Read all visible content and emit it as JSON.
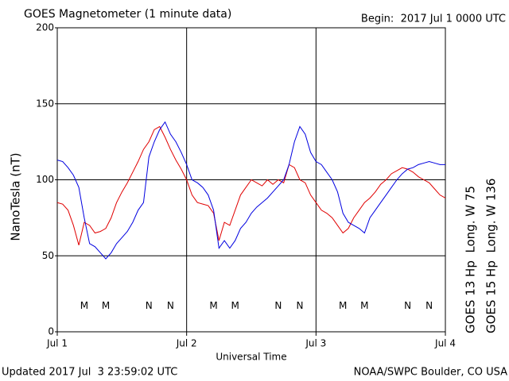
{
  "chart_data": {
    "type": "line",
    "title": "GOES Magnetometer (1 minute data)",
    "subtitle": "Begin:  2017 Jul 1 0000 UTC",
    "ylabel": "NanoTesla (nT)",
    "xlabel": "Universal Time",
    "footer_left": "Updated 2017 Jul  3 23:59:02 UTC",
    "footer_right": "NOAA/SWPC Boulder, CO USA",
    "xlim": [
      0,
      72
    ],
    "ylim": [
      0,
      200
    ],
    "yticks": [
      0,
      50,
      100,
      150,
      200
    ],
    "xticks": [
      {
        "value": 0,
        "label": "Jul 1"
      },
      {
        "value": 24,
        "label": "Jul 2"
      },
      {
        "value": 48,
        "label": "Jul 3"
      },
      {
        "value": 72,
        "label": "Jul 4"
      }
    ],
    "grid": true,
    "x": [
      0,
      1,
      2,
      3,
      4,
      5,
      6,
      7,
      8,
      9,
      10,
      11,
      12,
      13,
      14,
      15,
      16,
      17,
      18,
      19,
      20,
      21,
      22,
      23,
      24,
      25,
      26,
      27,
      28,
      29,
      30,
      31,
      32,
      33,
      34,
      35,
      36,
      37,
      38,
      39,
      40,
      41,
      42,
      43,
      44,
      45,
      46,
      47,
      48,
      49,
      50,
      51,
      52,
      53,
      54,
      55,
      56,
      57,
      58,
      59,
      60,
      61,
      62,
      63,
      64,
      65,
      66,
      67,
      68,
      69,
      70,
      71,
      72
    ],
    "series": [
      {
        "name": "GOES 13 Hp  Long. W 75",
        "color": "#e00000",
        "values": [
          85,
          84,
          80,
          70,
          57,
          72,
          70,
          65,
          66,
          68,
          75,
          85,
          92,
          98,
          105,
          112,
          120,
          125,
          133,
          135,
          128,
          120,
          113,
          107,
          100,
          90,
          85,
          84,
          83,
          78,
          60,
          72,
          70,
          80,
          90,
          95,
          100,
          98,
          96,
          100,
          97,
          100,
          98,
          110,
          108,
          100,
          98,
          90,
          85,
          80,
          78,
          75,
          70,
          65,
          68,
          75,
          80,
          85,
          88,
          92,
          97,
          100,
          104,
          106,
          108,
          107,
          105,
          102,
          100,
          98,
          94,
          90,
          88
        ]
      },
      {
        "name": "GOES 15 Hp  Long. W 136",
        "color": "#0000e0",
        "values": [
          113,
          112,
          108,
          103,
          95,
          75,
          58,
          56,
          52,
          48,
          52,
          58,
          62,
          66,
          72,
          80,
          85,
          115,
          125,
          133,
          138,
          130,
          125,
          118,
          110,
          100,
          98,
          95,
          90,
          80,
          55,
          60,
          55,
          60,
          68,
          72,
          78,
          82,
          85,
          88,
          92,
          96,
          100,
          110,
          125,
          135,
          130,
          118,
          112,
          110,
          105,
          100,
          92,
          78,
          72,
          70,
          68,
          65,
          75,
          80,
          85,
          90,
          95,
          100,
          104,
          107,
          108,
          110,
          111,
          112,
          111,
          110,
          110
        ]
      }
    ],
    "annotations": [
      {
        "text": "M",
        "x": 5,
        "y": 17,
        "series": 0
      },
      {
        "text": "M",
        "x": 9,
        "y": 17,
        "series": 1
      },
      {
        "text": "N",
        "x": 17,
        "y": 17,
        "series": 0
      },
      {
        "text": "N",
        "x": 21,
        "y": 17,
        "series": 1
      },
      {
        "text": "M",
        "x": 29,
        "y": 17,
        "series": 0
      },
      {
        "text": "M",
        "x": 33,
        "y": 17,
        "series": 1
      },
      {
        "text": "N",
        "x": 41,
        "y": 17,
        "series": 0
      },
      {
        "text": "N",
        "x": 45,
        "y": 17,
        "series": 1
      },
      {
        "text": "M",
        "x": 53,
        "y": 17,
        "series": 0
      },
      {
        "text": "M",
        "x": 57,
        "y": 17,
        "series": 1
      },
      {
        "text": "N",
        "x": 65,
        "y": 17,
        "series": 0
      },
      {
        "text": "N",
        "x": 69,
        "y": 17,
        "series": 1
      }
    ]
  }
}
